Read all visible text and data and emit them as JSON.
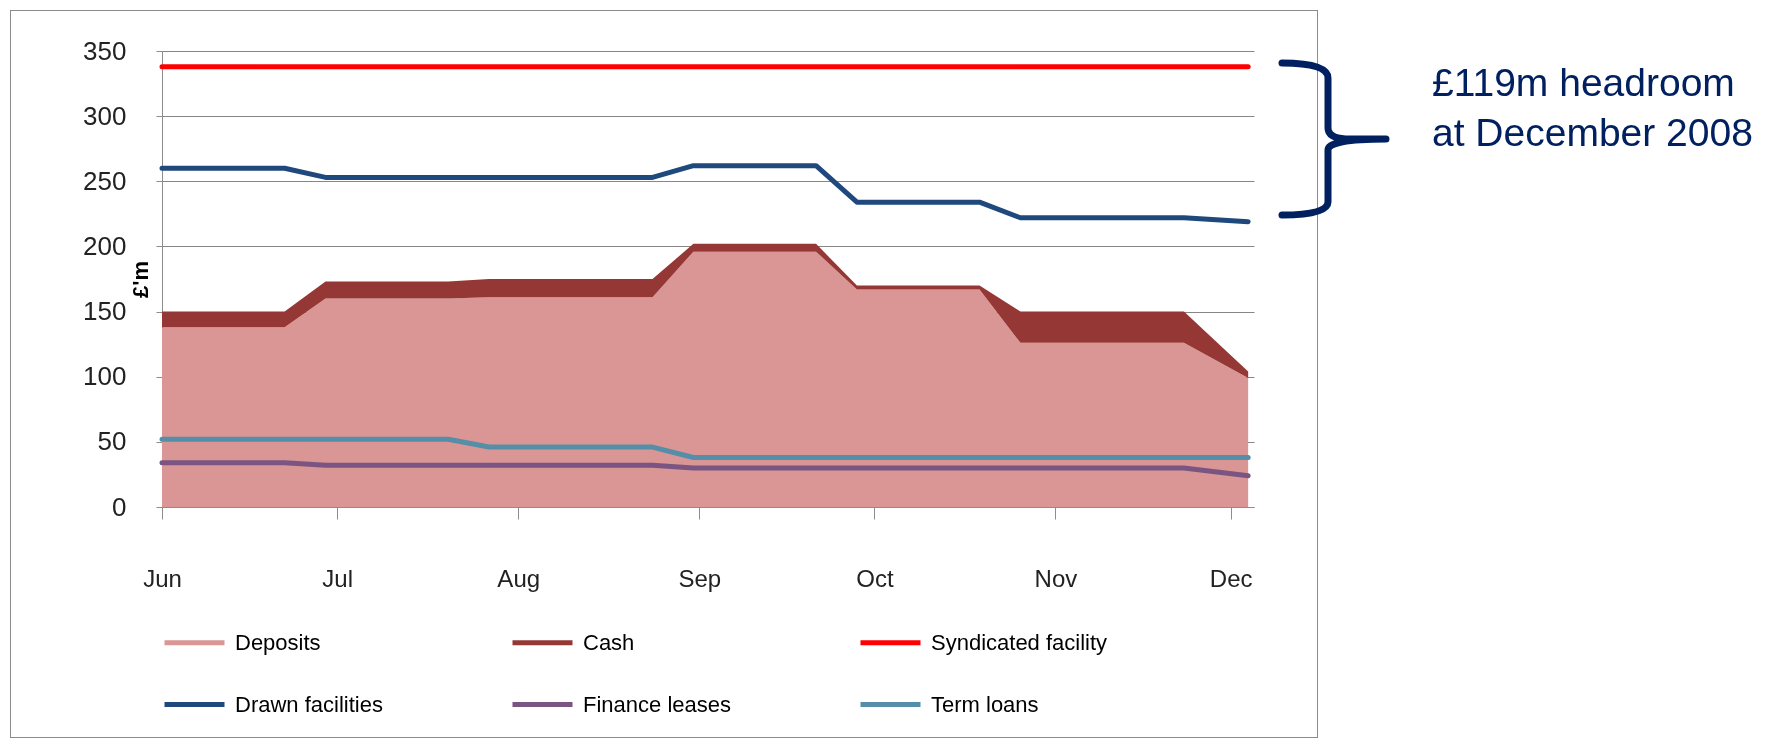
{
  "chart_data": {
    "type": "line",
    "ylabel": "£'m",
    "x": [
      "2008-06-01",
      "2008-06-22",
      "2008-06-29",
      "2008-07-20",
      "2008-07-27",
      "2008-08-24",
      "2008-08-31",
      "2008-09-21",
      "2008-09-28",
      "2008-10-19",
      "2008-10-26",
      "2008-11-23",
      "2008-12-04"
    ],
    "xlim": [
      "2008-06-01",
      "2008-12-05"
    ],
    "xticks": [
      {
        "value": "2008-06-01",
        "label": "Jun"
      },
      {
        "value": "2008-07-01",
        "label": "Jul"
      },
      {
        "value": "2008-08-01",
        "label": "Aug"
      },
      {
        "value": "2008-09-01",
        "label": "Sep"
      },
      {
        "value": "2008-10-01",
        "label": "Oct"
      },
      {
        "value": "2008-11-01",
        "label": "Nov"
      },
      {
        "value": "2008-12-01",
        "label": "Dec"
      }
    ],
    "ylim": [
      0,
      350
    ],
    "yticks": [
      0,
      50,
      100,
      150,
      200,
      250,
      300,
      350
    ],
    "grid": "y",
    "legend": "bottom",
    "stacked": true,
    "line_style": "solid",
    "marker": "none",
    "annotations": [
      "£119m headroom at December 2008"
    ],
    "series": [
      {
        "name": "Deposits",
        "type": "area",
        "color": "#d99694",
        "values": [
          138,
          138,
          160,
          160,
          161,
          161,
          196,
          196,
          167,
          167,
          126,
          126,
          99
        ]
      },
      {
        "name": "Cash",
        "type": "area",
        "color": "#953735",
        "values": [
          12,
          12,
          13,
          13,
          14,
          14,
          6,
          6,
          3,
          3,
          24,
          24,
          5
        ]
      },
      {
        "name": "Syndicated facility",
        "color": "#ff0000",
        "values": [
          338,
          338,
          338,
          338,
          338,
          338,
          338,
          338,
          338,
          338,
          338,
          338,
          338
        ]
      },
      {
        "name": "Drawn facilities",
        "color": "#1f497d",
        "values": [
          260,
          260,
          253,
          253,
          253,
          253,
          262,
          262,
          234,
          234,
          222,
          222,
          219
        ]
      },
      {
        "name": "Finance leases",
        "color": "#7a5482",
        "values": [
          34,
          34,
          32,
          32,
          32,
          32,
          30,
          30,
          30,
          30,
          30,
          30,
          24
        ]
      },
      {
        "name": "Term loans",
        "color": "#558ea8",
        "values": [
          52,
          52,
          52,
          52,
          46,
          46,
          38,
          38,
          38,
          38,
          38,
          38,
          38
        ]
      }
    ]
  }
}
